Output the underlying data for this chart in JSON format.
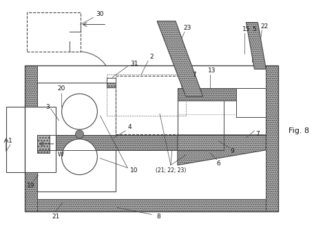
{
  "fig_width": 4.72,
  "fig_height": 3.31,
  "dpi": 100,
  "lc": "#444444",
  "hatch_fc": "#b8b8b8",
  "white": "#ffffff",
  "light_gray": "#d8d8d8"
}
